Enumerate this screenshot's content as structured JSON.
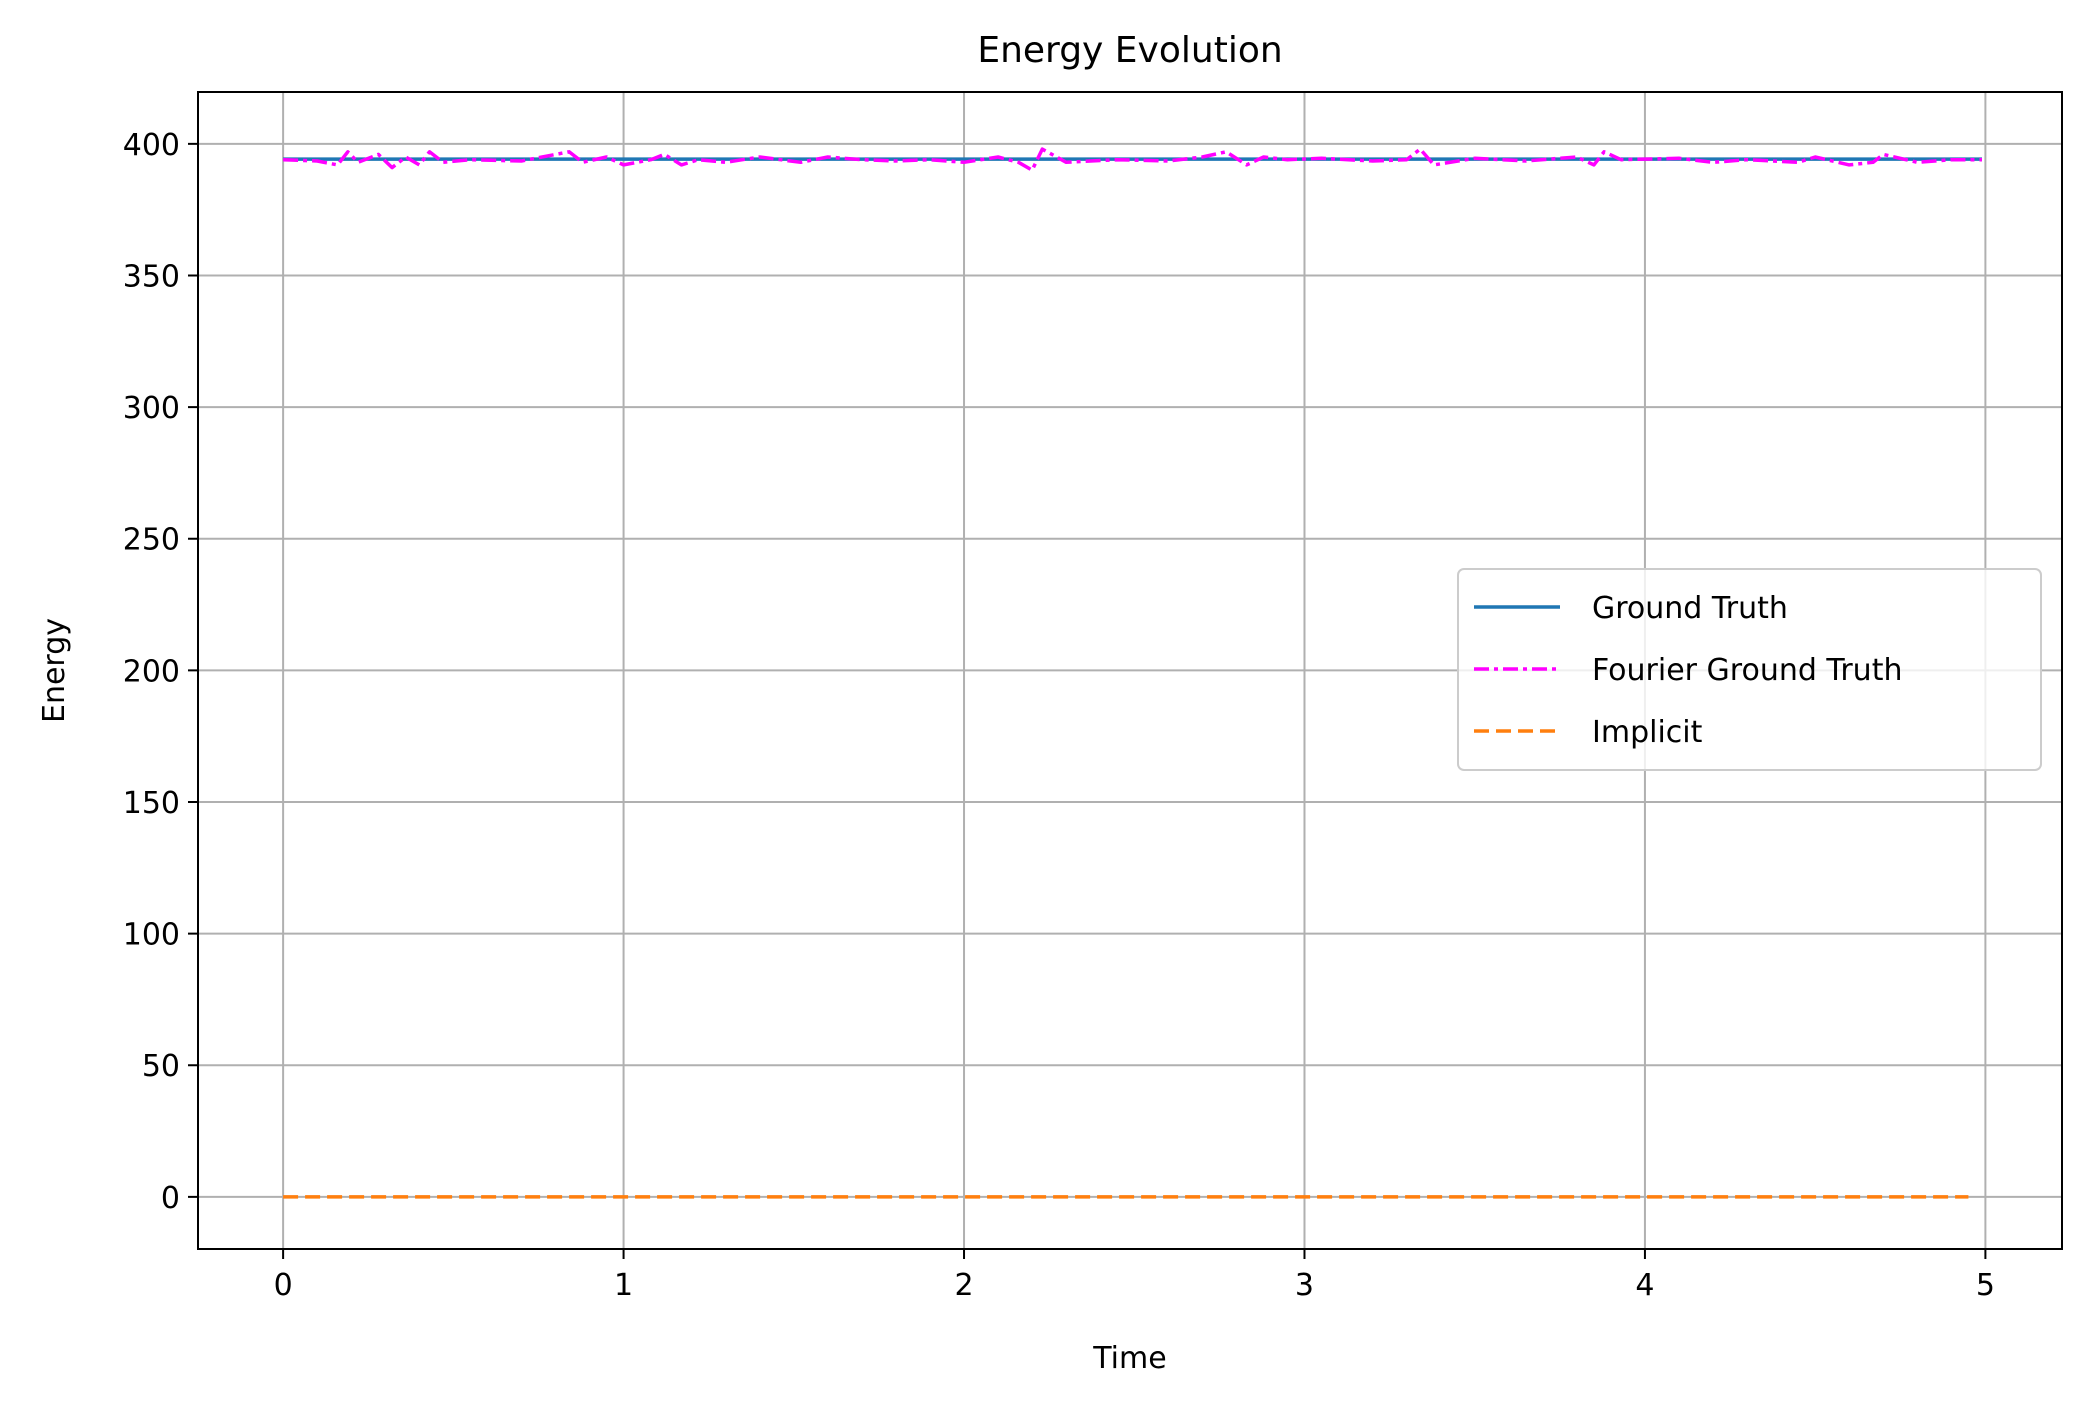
{
  "chart_data": {
    "type": "line",
    "title": "Energy Evolution",
    "xlabel": "Time",
    "ylabel": "Energy",
    "xlim": [
      -0.25,
      5.225
    ],
    "ylim": [
      -19.8,
      419.7
    ],
    "xticks": [
      0,
      1,
      2,
      3,
      4,
      5
    ],
    "yticks": [
      0,
      50,
      100,
      150,
      200,
      250,
      300,
      350,
      400
    ],
    "grid": true,
    "legend_position": "center-right",
    "series": [
      {
        "name": "Ground Truth",
        "color": "#1f77b4",
        "style": "solid",
        "x": [
          0,
          4.99
        ],
        "y": [
          394.2,
          394.2
        ]
      },
      {
        "name": "Fourier Ground Truth",
        "color": "#ff00ff",
        "style": "dashdot",
        "x": [
          0,
          0.1,
          0.16,
          0.19,
          0.22,
          0.28,
          0.32,
          0.36,
          0.4,
          0.43,
          0.47,
          0.55,
          0.7,
          0.84,
          0.88,
          0.95,
          1.0,
          1.08,
          1.12,
          1.17,
          1.22,
          1.3,
          1.4,
          1.52,
          1.6,
          1.7,
          1.8,
          1.9,
          2.0,
          2.1,
          2.16,
          2.2,
          2.23,
          2.3,
          2.45,
          2.6,
          2.7,
          2.77,
          2.83,
          2.88,
          2.95,
          3.05,
          3.2,
          3.3,
          3.34,
          3.38,
          3.5,
          3.65,
          3.8,
          3.85,
          3.88,
          3.93,
          4.1,
          4.2,
          4.3,
          4.45,
          4.5,
          4.6,
          4.67,
          4.7,
          4.8,
          4.9,
          4.99
        ],
        "y": [
          394,
          393.5,
          392,
          397,
          393,
          396,
          391,
          395,
          392,
          397,
          393,
          394,
          393.5,
          397,
          393,
          395,
          392,
          394,
          396,
          392,
          394,
          393,
          395,
          393,
          395,
          394,
          393.5,
          394,
          393,
          395,
          393,
          390,
          398,
          393,
          394,
          393.5,
          395,
          397,
          392,
          395,
          394,
          394.5,
          393.5,
          394,
          398,
          392,
          394.5,
          393.5,
          395,
          392,
          397,
          394,
          394.5,
          393,
          394,
          393,
          395,
          392,
          393,
          396,
          393,
          394,
          394
        ]
      },
      {
        "name": "Implicit",
        "color": "#ff7f0e",
        "style": "dashed",
        "x": [
          0,
          4.95
        ],
        "y": [
          0,
          0
        ]
      }
    ]
  }
}
